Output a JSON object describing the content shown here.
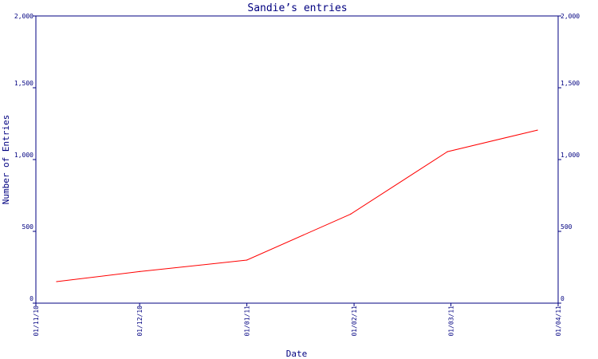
{
  "chart_data": {
    "type": "line",
    "title": "Sandie’s entries",
    "xlabel": "Date",
    "ylabel": "Number of Entries",
    "ylim": [
      0,
      2000
    ],
    "y_ticks": [
      0,
      500,
      1000,
      1500,
      2000
    ],
    "y_tick_labels": [
      "0",
      "500",
      "1,000",
      "1,500",
      "2,000"
    ],
    "x_ticks": [
      "2010-11-01",
      "2010-12-01",
      "2011-01-01",
      "2011-02-01",
      "2011-03-01",
      "2011-04-01"
    ],
    "x_tick_labels": [
      "01/11/10",
      "01/12/10",
      "01/01/11",
      "01/02/11",
      "01/03/11",
      "01/04/11"
    ],
    "xlim": [
      "2010-11-01",
      "2011-04-01"
    ],
    "grid": false,
    "series": [
      {
        "color": "#ff0000",
        "points": [
          {
            "x": "2010-11-07",
            "y": 150
          },
          {
            "x": "2010-12-01",
            "y": 220
          },
          {
            "x": "2011-01-01",
            "y": 300
          },
          {
            "x": "2011-01-31",
            "y": 620
          },
          {
            "x": "2011-02-28",
            "y": 1055
          },
          {
            "x": "2011-03-26",
            "y": 1205
          }
        ]
      }
    ],
    "colors": {
      "axis": "#000080",
      "text": "#000080",
      "line": "#ff0000"
    }
  }
}
